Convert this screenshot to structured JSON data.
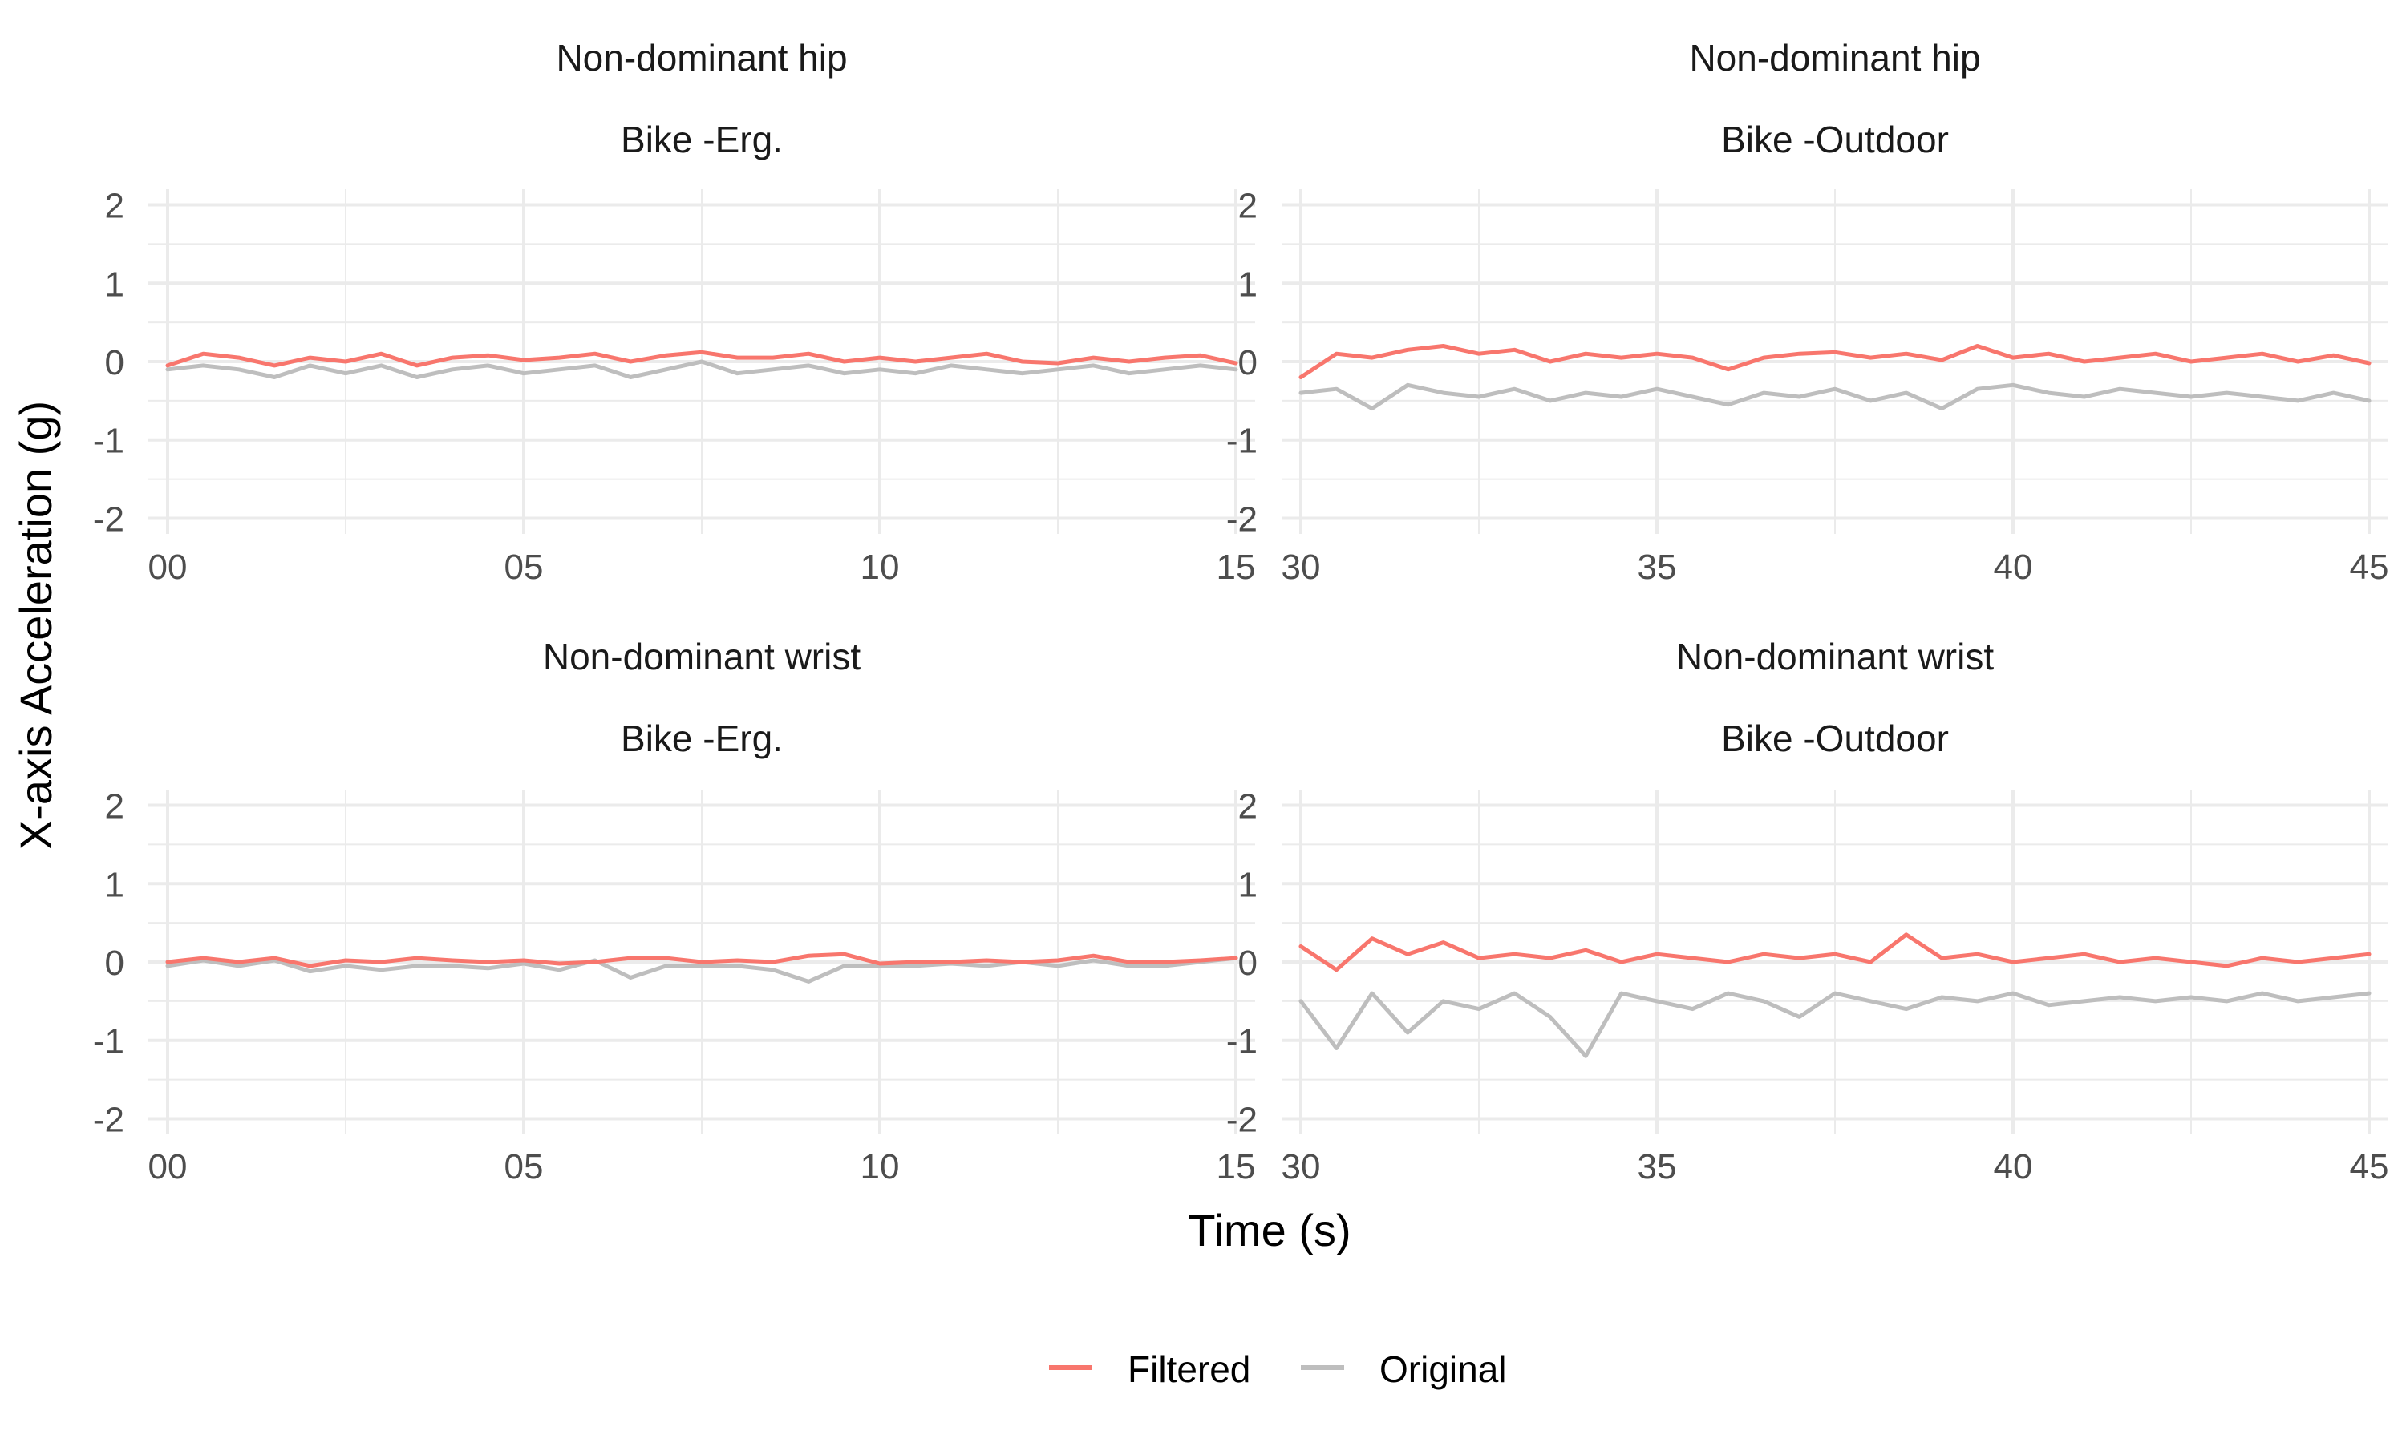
{
  "chart_data": {
    "type": "line",
    "xlabel": "Time (s)",
    "ylabel": "X-axis Acceleration (g)",
    "ylim": [
      -2.2,
      2.2
    ],
    "yticks": [
      -2,
      -1,
      0,
      1,
      2
    ],
    "grid": true,
    "legend_position": "bottom",
    "colors": {
      "Filtered": "#F8766D",
      "Original": "#BEBEBE"
    },
    "legend": [
      {
        "name": "Filtered",
        "color": "#F8766D"
      },
      {
        "name": "Original",
        "color": "#BEBEBE"
      }
    ],
    "panels": [
      {
        "strip_top": "Non-dominant hip",
        "strip_bottom": "Bike -Erg.",
        "xlim": [
          0,
          15
        ],
        "xticks": [
          0,
          5,
          10,
          15
        ],
        "xtick_labels": [
          "00",
          "05",
          "10",
          "15"
        ],
        "series": [
          {
            "name": "Filtered",
            "x": [
              0,
              0.5,
              1,
              1.5,
              2,
              2.5,
              3,
              3.5,
              4,
              4.5,
              5,
              5.5,
              6,
              6.5,
              7,
              7.5,
              8,
              8.5,
              9,
              9.5,
              10,
              10.5,
              11,
              11.5,
              12,
              12.5,
              13,
              13.5,
              14,
              14.5,
              15
            ],
            "y": [
              -0.05,
              0.1,
              0.05,
              -0.05,
              0.05,
              0.0,
              0.1,
              -0.05,
              0.05,
              0.08,
              0.02,
              0.05,
              0.1,
              0.0,
              0.08,
              0.12,
              0.05,
              0.05,
              0.1,
              0.0,
              0.05,
              0.0,
              0.05,
              0.1,
              0.0,
              -0.02,
              0.05,
              0.0,
              0.05,
              0.08,
              -0.02
            ]
          },
          {
            "name": "Original",
            "x": [
              0,
              0.5,
              1,
              1.5,
              2,
              2.5,
              3,
              3.5,
              4,
              4.5,
              5,
              5.5,
              6,
              6.5,
              7,
              7.5,
              8,
              8.5,
              9,
              9.5,
              10,
              10.5,
              11,
              11.5,
              12,
              12.5,
              13,
              13.5,
              14,
              14.5,
              15
            ],
            "y": [
              -0.1,
              -0.05,
              -0.1,
              -0.2,
              -0.05,
              -0.15,
              -0.05,
              -0.2,
              -0.1,
              -0.05,
              -0.15,
              -0.1,
              -0.05,
              -0.2,
              -0.1,
              0.0,
              -0.15,
              -0.1,
              -0.05,
              -0.15,
              -0.1,
              -0.15,
              -0.05,
              -0.1,
              -0.15,
              -0.1,
              -0.05,
              -0.15,
              -0.1,
              -0.05,
              -0.1
            ]
          }
        ]
      },
      {
        "strip_top": "Non-dominant hip",
        "strip_bottom": "Bike -Outdoor",
        "xlim": [
          30,
          45
        ],
        "xticks": [
          30,
          35,
          40,
          45
        ],
        "xtick_labels": [
          "30",
          "35",
          "40",
          "45"
        ],
        "series": [
          {
            "name": "Filtered",
            "x": [
              30,
              30.5,
              31,
              31.5,
              32,
              32.5,
              33,
              33.5,
              34,
              34.5,
              35,
              35.5,
              36,
              36.5,
              37,
              37.5,
              38,
              38.5,
              39,
              39.5,
              40,
              40.5,
              41,
              41.5,
              42,
              42.5,
              43,
              43.5,
              44,
              44.5,
              45
            ],
            "y": [
              -0.2,
              0.1,
              0.05,
              0.15,
              0.2,
              0.1,
              0.15,
              0.0,
              0.1,
              0.05,
              0.1,
              0.05,
              -0.1,
              0.05,
              0.1,
              0.12,
              0.05,
              0.1,
              0.02,
              0.2,
              0.05,
              0.1,
              0.0,
              0.05,
              0.1,
              0.0,
              0.05,
              0.1,
              0.0,
              0.08,
              -0.02
            ]
          },
          {
            "name": "Original",
            "x": [
              30,
              30.5,
              31,
              31.5,
              32,
              32.5,
              33,
              33.5,
              34,
              34.5,
              35,
              35.5,
              36,
              36.5,
              37,
              37.5,
              38,
              38.5,
              39,
              39.5,
              40,
              40.5,
              41,
              41.5,
              42,
              42.5,
              43,
              43.5,
              44,
              44.5,
              45
            ],
            "y": [
              -0.4,
              -0.35,
              -0.6,
              -0.3,
              -0.4,
              -0.45,
              -0.35,
              -0.5,
              -0.4,
              -0.45,
              -0.35,
              -0.45,
              -0.55,
              -0.4,
              -0.45,
              -0.35,
              -0.5,
              -0.4,
              -0.6,
              -0.35,
              -0.3,
              -0.4,
              -0.45,
              -0.35,
              -0.4,
              -0.45,
              -0.4,
              -0.45,
              -0.5,
              -0.4,
              -0.5
            ]
          }
        ]
      },
      {
        "strip_top": "Non-dominant wrist",
        "strip_bottom": "Bike -Erg.",
        "xlim": [
          0,
          15
        ],
        "xticks": [
          0,
          5,
          10,
          15
        ],
        "xtick_labels": [
          "00",
          "05",
          "10",
          "15"
        ],
        "series": [
          {
            "name": "Filtered",
            "x": [
              0,
              0.5,
              1,
              1.5,
              2,
              2.5,
              3,
              3.5,
              4,
              4.5,
              5,
              5.5,
              6,
              6.5,
              7,
              7.5,
              8,
              8.5,
              9,
              9.5,
              10,
              10.5,
              11,
              11.5,
              12,
              12.5,
              13,
              13.5,
              14,
              14.5,
              15
            ],
            "y": [
              0.0,
              0.05,
              0.0,
              0.05,
              -0.05,
              0.02,
              0.0,
              0.05,
              0.02,
              0.0,
              0.02,
              -0.02,
              0.0,
              0.05,
              0.05,
              0.0,
              0.02,
              0.0,
              0.08,
              0.1,
              -0.02,
              0.0,
              0.0,
              0.02,
              0.0,
              0.02,
              0.08,
              0.0,
              0.0,
              0.02,
              0.05
            ]
          },
          {
            "name": "Original",
            "x": [
              0,
              0.5,
              1,
              1.5,
              2,
              2.5,
              3,
              3.5,
              4,
              4.5,
              5,
              5.5,
              6,
              6.5,
              7,
              7.5,
              8,
              8.5,
              9,
              9.5,
              10,
              10.5,
              11,
              11.5,
              12,
              12.5,
              13,
              13.5,
              14,
              14.5,
              15
            ],
            "y": [
              -0.05,
              0.02,
              -0.05,
              0.02,
              -0.12,
              -0.05,
              -0.1,
              -0.05,
              -0.05,
              -0.08,
              -0.02,
              -0.1,
              0.02,
              -0.2,
              -0.05,
              -0.05,
              -0.05,
              -0.1,
              -0.25,
              -0.05,
              -0.05,
              -0.05,
              -0.02,
              -0.05,
              0.0,
              -0.05,
              0.02,
              -0.05,
              -0.05,
              0.0,
              0.05
            ]
          }
        ]
      },
      {
        "strip_top": "Non-dominant wrist",
        "strip_bottom": "Bike -Outdoor",
        "xlim": [
          30,
          45
        ],
        "xticks": [
          30,
          35,
          40,
          45
        ],
        "xtick_labels": [
          "30",
          "35",
          "40",
          "45"
        ],
        "series": [
          {
            "name": "Filtered",
            "x": [
              30,
              30.5,
              31,
              31.5,
              32,
              32.5,
              33,
              33.5,
              34,
              34.5,
              35,
              35.5,
              36,
              36.5,
              37,
              37.5,
              38,
              38.5,
              39,
              39.5,
              40,
              40.5,
              41,
              41.5,
              42,
              42.5,
              43,
              43.5,
              44,
              44.5,
              45
            ],
            "y": [
              0.2,
              -0.1,
              0.3,
              0.1,
              0.25,
              0.05,
              0.1,
              0.05,
              0.15,
              0.0,
              0.1,
              0.05,
              0.0,
              0.1,
              0.05,
              0.1,
              0.0,
              0.35,
              0.05,
              0.1,
              0.0,
              0.05,
              0.1,
              0.0,
              0.05,
              0.0,
              -0.05,
              0.05,
              0.0,
              0.05,
              0.1
            ]
          },
          {
            "name": "Original",
            "x": [
              30,
              30.5,
              31,
              31.5,
              32,
              32.5,
              33,
              33.5,
              34,
              34.5,
              35,
              35.5,
              36,
              36.5,
              37,
              37.5,
              38,
              38.5,
              39,
              39.5,
              40,
              40.5,
              41,
              41.5,
              42,
              42.5,
              43,
              43.5,
              44,
              44.5,
              45
            ],
            "y": [
              -0.5,
              -1.1,
              -0.4,
              -0.9,
              -0.5,
              -0.6,
              -0.4,
              -0.7,
              -1.2,
              -0.4,
              -0.5,
              -0.6,
              -0.4,
              -0.5,
              -0.7,
              -0.4,
              -0.5,
              -0.6,
              -0.45,
              -0.5,
              -0.4,
              -0.55,
              -0.5,
              -0.45,
              -0.5,
              -0.45,
              -0.5,
              -0.4,
              -0.5,
              -0.45,
              -0.4
            ]
          }
        ]
      }
    ]
  }
}
